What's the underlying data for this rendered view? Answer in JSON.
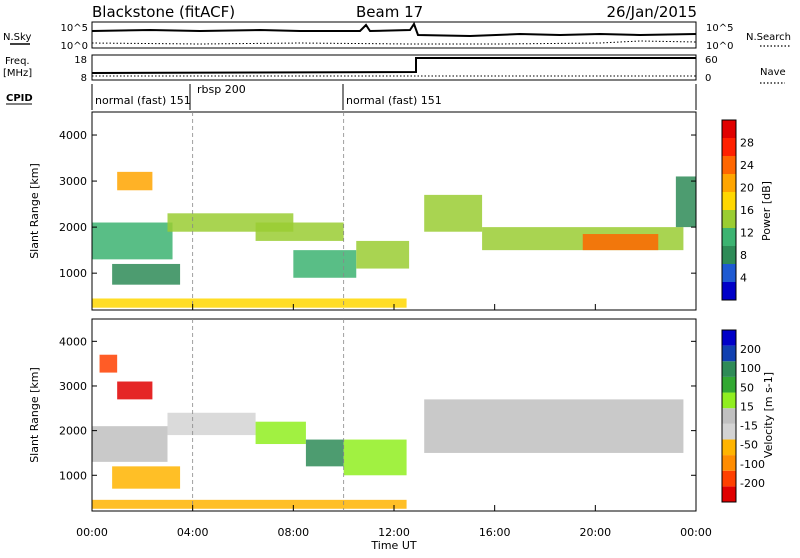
{
  "header": {
    "station": "Blackstone (fitACF)",
    "beam": "Beam 17",
    "date": "26/Jan/2015"
  },
  "noise_panel": {
    "left_label": "N.Sky",
    "right_label": "N.Search",
    "left_ticks": [
      "10^5",
      "10^0"
    ],
    "right_ticks": [
      "10^5",
      "10^0"
    ]
  },
  "freq_panel": {
    "left_label_1": "Freq.",
    "left_label_2": "[MHz]",
    "right_label": "Nave",
    "left_ticks": [
      "18",
      "8"
    ],
    "right_ticks": [
      "60",
      "0"
    ]
  },
  "cpid": {
    "label": "CPID",
    "entries": [
      "normal (fast) 151",
      "rbsp 200",
      "normal (fast) 151"
    ]
  },
  "x_axis": {
    "label": "Time UT",
    "ticks": [
      "00:00",
      "04:00",
      "08:00",
      "12:00",
      "16:00",
      "20:00",
      "00:00"
    ]
  },
  "colors": {
    "power_scale": [
      "#0000c8",
      "#1e5ad2",
      "#2e8b57",
      "#3cb371",
      "#9acd32",
      "#ffd700",
      "#ffa500",
      "#ff6600",
      "#ff2000",
      "#e00000"
    ],
    "velocity_scale": [
      "#e00000",
      "#ff4000",
      "#ff8c00",
      "#ffb400",
      "#d3d3d3",
      "#c0c0c0",
      "#90ee20",
      "#32a832",
      "#2e8b57",
      "#1040b0",
      "#0000c8"
    ]
  },
  "chart_data": [
    {
      "type": "heatmap",
      "title": "Power",
      "ylabel": "Slant Range [km]",
      "xlabel": "",
      "y_ticks": [
        "1000",
        "2000",
        "3000",
        "4000"
      ],
      "ylim": [
        200,
        4500
      ],
      "xlim": [
        "00:00",
        "00:00"
      ],
      "colorbar": {
        "label": "Power [dB]",
        "ticks": [
          "4",
          "8",
          "12",
          "16",
          "20",
          "24",
          "28"
        ],
        "range": [
          0,
          30
        ]
      },
      "regions": [
        {
          "t0": 0.0,
          "t1": 3.2,
          "r0": 1300,
          "r1": 2100,
          "value": 10
        },
        {
          "t0": 1.0,
          "t1": 2.4,
          "r0": 2800,
          "r1": 3200,
          "value": 18
        },
        {
          "t0": 0.8,
          "t1": 3.5,
          "r0": 750,
          "r1": 1200,
          "value": 8
        },
        {
          "t0": 3.0,
          "t1": 8.0,
          "r0": 1900,
          "r1": 2300,
          "value": 12
        },
        {
          "t0": 6.5,
          "t1": 10.0,
          "r0": 1700,
          "r1": 2100,
          "value": 14
        },
        {
          "t0": 8.0,
          "t1": 10.5,
          "r0": 900,
          "r1": 1500,
          "value": 10
        },
        {
          "t0": 10.5,
          "t1": 12.6,
          "r0": 1100,
          "r1": 1700,
          "value": 12
        },
        {
          "t0": 13.2,
          "t1": 15.5,
          "r0": 1900,
          "r1": 2700,
          "value": 12
        },
        {
          "t0": 15.5,
          "t1": 23.5,
          "r0": 1500,
          "r1": 2000,
          "value": 14
        },
        {
          "t0": 19.5,
          "t1": 22.5,
          "r0": 1500,
          "r1": 1850,
          "value": 22
        },
        {
          "t0": 23.2,
          "t1": 24.0,
          "r0": 2000,
          "r1": 3100,
          "value": 8
        },
        {
          "t0": 0.0,
          "t1": 12.5,
          "r0": 250,
          "r1": 450,
          "value": 16
        }
      ]
    },
    {
      "type": "heatmap",
      "title": "Velocity",
      "ylabel": "Slant Range [km]",
      "xlabel": "Time UT",
      "y_ticks": [
        "1000",
        "2000",
        "3000",
        "4000"
      ],
      "ylim": [
        200,
        4500
      ],
      "xlim": [
        "00:00",
        "00:00"
      ],
      "colorbar": {
        "label": "Velocity [m s-1]",
        "ticks": [
          "200",
          "100",
          "50",
          "15",
          "-15",
          "-50",
          "-100",
          "-200"
        ],
        "range": [
          -250,
          250
        ]
      },
      "regions": [
        {
          "t0": 0.0,
          "t1": 3.0,
          "r0": 1300,
          "r1": 2100,
          "value": 0
        },
        {
          "t0": 0.3,
          "t1": 1.0,
          "r0": 3300,
          "r1": 3700,
          "value": -180
        },
        {
          "t0": 1.0,
          "t1": 2.4,
          "r0": 2700,
          "r1": 3100,
          "value": -210
        },
        {
          "t0": 0.8,
          "t1": 3.5,
          "r0": 700,
          "r1": 1200,
          "value": -70
        },
        {
          "t0": 3.0,
          "t1": 6.5,
          "r0": 1900,
          "r1": 2400,
          "value": -60
        },
        {
          "t0": 6.5,
          "t1": 8.5,
          "r0": 1700,
          "r1": 2200,
          "value": 60
        },
        {
          "t0": 8.5,
          "t1": 10.0,
          "r0": 1200,
          "r1": 1800,
          "value": 150
        },
        {
          "t0": 10.0,
          "t1": 12.5,
          "r0": 1000,
          "r1": 1800,
          "value": 60
        },
        {
          "t0": 13.2,
          "t1": 23.5,
          "r0": 1500,
          "r1": 2700,
          "value": 0
        },
        {
          "t0": 0.0,
          "t1": 12.5,
          "r0": 250,
          "r1": 450,
          "value": -80
        }
      ]
    }
  ]
}
